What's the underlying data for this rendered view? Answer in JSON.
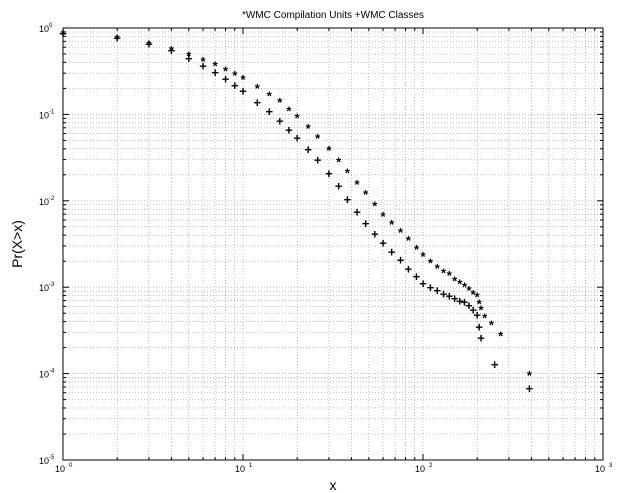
{
  "chart_data": {
    "type": "scatter",
    "title": "*WMC Compilation Units   +WMC Classes",
    "xlabel": "x",
    "ylabel": "Pr(X>x)",
    "xscale": "log",
    "yscale": "log",
    "xlim": [
      1,
      1000
    ],
    "ylim": [
      1e-05,
      1
    ],
    "grid": true,
    "x_ticks": [
      {
        "base": "10",
        "exp": "0"
      },
      {
        "base": "10",
        "exp": "1"
      },
      {
        "base": "10",
        "exp": "2"
      },
      {
        "base": "10",
        "exp": "3"
      }
    ],
    "y_ticks": [
      {
        "base": "10",
        "exp": "-5"
      },
      {
        "base": "10",
        "exp": "-4"
      },
      {
        "base": "10",
        "exp": "-3"
      },
      {
        "base": "10",
        "exp": "-2"
      },
      {
        "base": "10",
        "exp": "-1"
      },
      {
        "base": "10",
        "exp": "0"
      }
    ],
    "series": [
      {
        "name": "WMC Compilation Units",
        "marker": "*",
        "x": [
          1,
          2,
          3,
          4,
          5,
          6,
          7,
          8,
          9,
          10,
          12,
          14,
          16,
          18,
          20,
          23,
          26,
          30,
          34,
          38,
          43,
          48,
          54,
          60,
          67,
          75,
          83,
          92,
          100,
          110,
          120,
          130,
          140,
          150,
          160,
          170,
          180,
          190,
          200,
          205,
          210,
          220,
          240,
          270,
          390
        ],
        "y": [
          0.92,
          0.82,
          0.7,
          0.6,
          0.52,
          0.45,
          0.4,
          0.35,
          0.31,
          0.28,
          0.22,
          0.18,
          0.15,
          0.12,
          0.1,
          0.075,
          0.058,
          0.042,
          0.031,
          0.023,
          0.017,
          0.013,
          0.0095,
          0.0072,
          0.0058,
          0.0047,
          0.0038,
          0.003,
          0.0025,
          0.0021,
          0.0018,
          0.0016,
          0.0015,
          0.0013,
          0.0012,
          0.0011,
          0.001,
          0.0009,
          0.00085,
          0.0007,
          0.0006,
          0.00048,
          0.0004,
          0.0003,
          0.000105
        ]
      },
      {
        "name": "WMC Classes",
        "marker": "+",
        "x": [
          1,
          2,
          3,
          4,
          5,
          6,
          7,
          8,
          9,
          10,
          12,
          14,
          16,
          18,
          20,
          23,
          26,
          30,
          34,
          38,
          43,
          48,
          54,
          60,
          67,
          75,
          83,
          92,
          100,
          110,
          120,
          130,
          140,
          150,
          160,
          170,
          180,
          190,
          200,
          205,
          210,
          250,
          390
        ],
        "y": [
          0.88,
          0.78,
          0.66,
          0.56,
          0.45,
          0.37,
          0.31,
          0.26,
          0.22,
          0.19,
          0.14,
          0.11,
          0.085,
          0.067,
          0.054,
          0.04,
          0.03,
          0.021,
          0.015,
          0.0105,
          0.0075,
          0.0055,
          0.0042,
          0.0033,
          0.0026,
          0.0021,
          0.00165,
          0.00135,
          0.00112,
          0.001,
          0.00093,
          0.00085,
          0.0008,
          0.00075,
          0.0007,
          0.00068,
          0.00062,
          0.00055,
          0.00048,
          0.00035,
          0.00026,
          0.00013,
          6.8e-05
        ]
      }
    ]
  }
}
